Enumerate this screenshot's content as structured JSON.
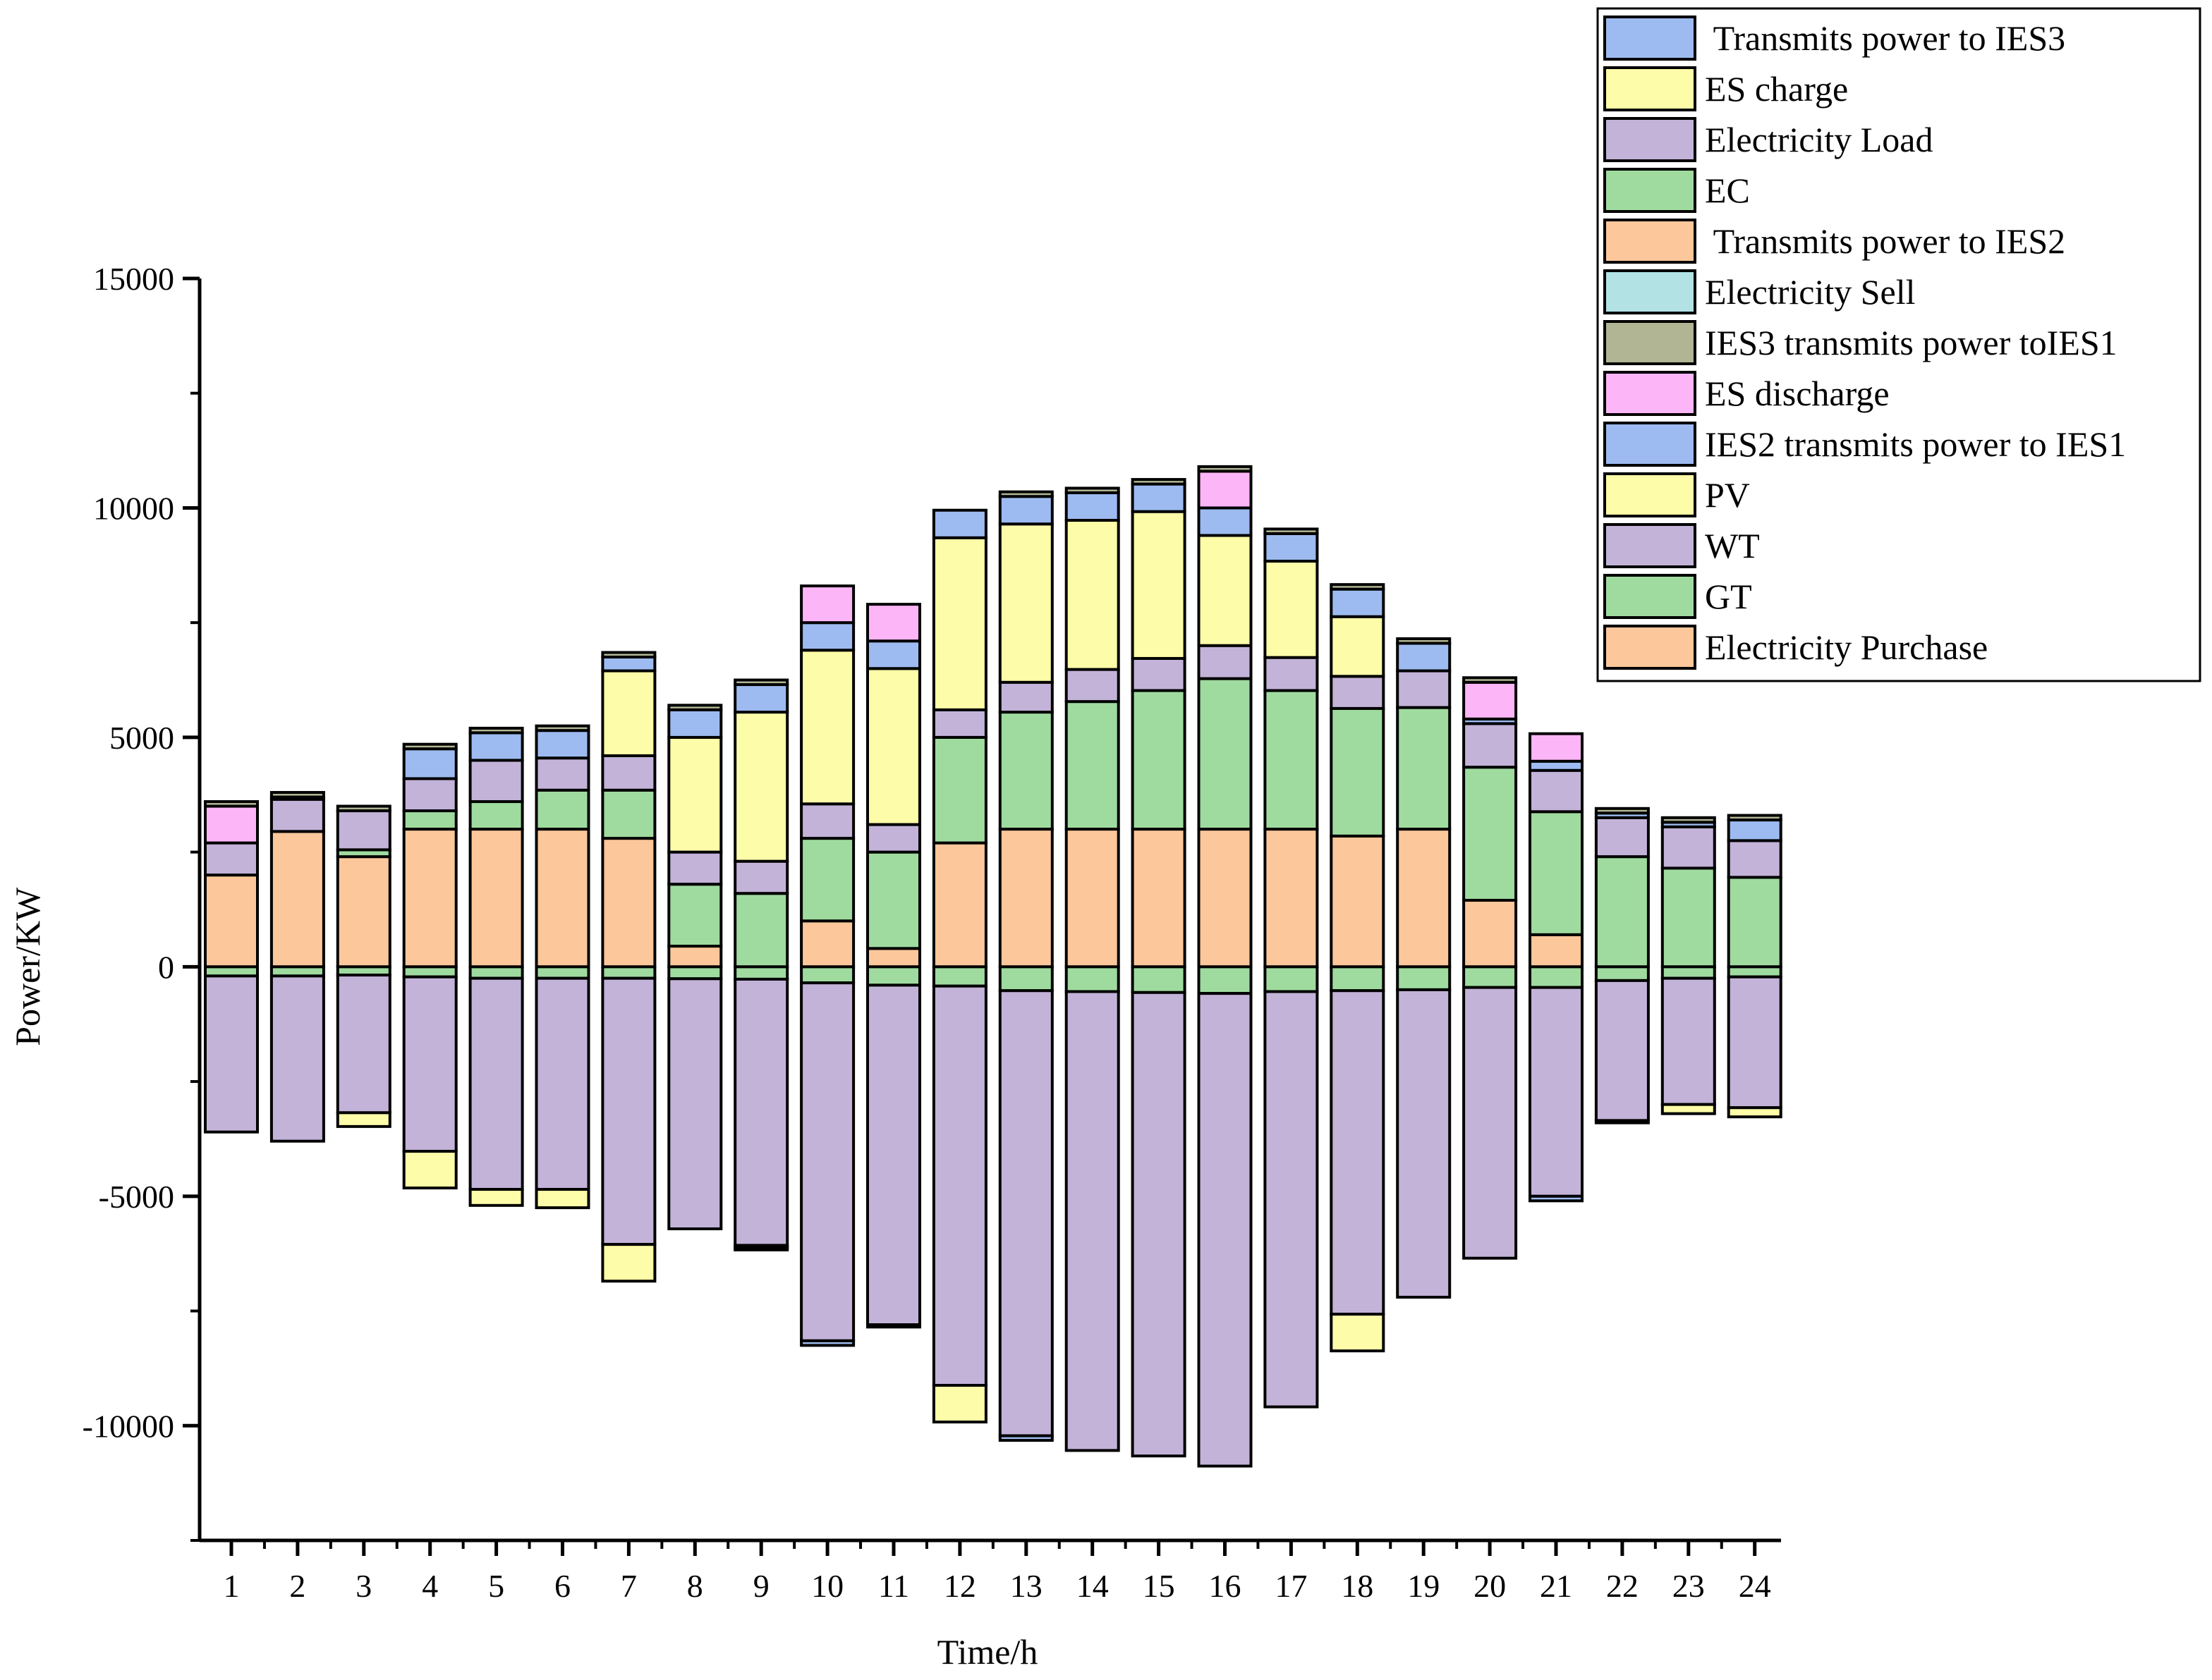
{
  "chart_data": {
    "type": "bar",
    "stacked": true,
    "xlabel": "Time/h",
    "ylabel": "Power/KW",
    "ylim": [
      -12500,
      15000
    ],
    "yticks": [
      -10000,
      -5000,
      0,
      5000,
      10000,
      15000
    ],
    "categories": [
      "1",
      "2",
      "3",
      "4",
      "5",
      "6",
      "7",
      "8",
      "9",
      "10",
      "11",
      "12",
      "13",
      "14",
      "15",
      "16",
      "17",
      "18",
      "19",
      "20",
      "21",
      "22",
      "23",
      "24"
    ],
    "grid": false,
    "legend_position": "top-right",
    "legend": [
      {
        "label": " Transmits power to IES3",
        "color": "#9dbbf0"
      },
      {
        "label": "ES charge",
        "color": "#fdfca8"
      },
      {
        "label": "Electricity Load",
        "color": "#c3b3d8"
      },
      {
        "label": "EC",
        "color": "#9fdb9f"
      },
      {
        "label": " Transmits power to IES2",
        "color": "#fbc79b"
      },
      {
        "label": "Electricity Sell",
        "color": "#b2e2e4"
      },
      {
        "label": "IES3 transmits power toIES1",
        "color": "#b2b594"
      },
      {
        "label": "ES discharge",
        "color": "#fcb5f6"
      },
      {
        "label": "IES2 transmits power to IES1",
        "color": "#9dbbf0"
      },
      {
        "label": "PV",
        "color": "#fdfca8"
      },
      {
        "label": "WT",
        "color": "#c3b3d8"
      },
      {
        "label": "GT",
        "color": "#9fdb9f"
      },
      {
        "label": "Electricity Purchase",
        "color": "#fbc79b"
      }
    ],
    "positive_series": [
      {
        "name": "Electricity Purchase",
        "color": "#fbc79b",
        "values": [
          2000,
          2950,
          2400,
          3000,
          3000,
          3000,
          2800,
          450,
          0,
          1000,
          400,
          2700,
          3000,
          3000,
          3000,
          3000,
          3000,
          2850,
          3000,
          1450,
          700,
          0,
          0,
          0
        ]
      },
      {
        "name": "GT",
        "color": "#9fdb9f",
        "values": [
          0,
          0,
          150,
          400,
          600,
          850,
          1050,
          1350,
          1600,
          1800,
          2100,
          2300,
          2550,
          2780,
          3020,
          3280,
          3020,
          2780,
          2650,
          2900,
          2680,
          2400,
          2150,
          1950
        ]
      },
      {
        "name": "WT",
        "color": "#c3b3d8",
        "values": [
          700,
          700,
          850,
          700,
          900,
          700,
          750,
          700,
          700,
          750,
          600,
          600,
          650,
          700,
          700,
          720,
          720,
          700,
          800,
          950,
          900,
          850,
          900,
          800
        ]
      },
      {
        "name": "PV",
        "color": "#fdfca8",
        "values": [
          0,
          0,
          0,
          0,
          0,
          0,
          1850,
          2500,
          3250,
          3350,
          3400,
          3750,
          3450,
          3250,
          3200,
          2400,
          2100,
          1300,
          0,
          0,
          0,
          0,
          0,
          0
        ]
      },
      {
        "name": "IES2 transmits power to IES1",
        "color": "#9dbbf0",
        "values": [
          0,
          50,
          0,
          650,
          600,
          600,
          300,
          600,
          600,
          600,
          600,
          600,
          600,
          600,
          600,
          600,
          600,
          600,
          600,
          100,
          200,
          100,
          100,
          450
        ]
      },
      {
        "name": "ES discharge",
        "color": "#fcb5f6",
        "values": [
          800,
          0,
          0,
          0,
          0,
          0,
          0,
          0,
          0,
          800,
          800,
          0,
          0,
          0,
          0,
          800,
          0,
          0,
          0,
          800,
          600,
          0,
          0,
          0
        ]
      },
      {
        "name": "IES3 transmits power toIES1",
        "color": "#b2b594",
        "values": [
          100,
          100,
          100,
          100,
          100,
          100,
          100,
          100,
          100,
          0,
          0,
          0,
          100,
          100,
          100,
          100,
          100,
          100,
          100,
          100,
          0,
          100,
          100,
          100
        ]
      },
      {
        "name": "Electricity Sell",
        "color": "#b2e2e4",
        "values": [
          0,
          0,
          0,
          0,
          0,
          0,
          0,
          0,
          0,
          0,
          0,
          0,
          0,
          0,
          0,
          0,
          0,
          0,
          0,
          0,
          0,
          0,
          0,
          0
        ]
      }
    ],
    "negative_series": [
      {
        "name": "EC",
        "color": "#9fdb9f",
        "values": [
          -200,
          -200,
          -180,
          -220,
          -250,
          -250,
          -250,
          -260,
          -270,
          -350,
          -400,
          -420,
          -520,
          -540,
          -560,
          -580,
          -540,
          -520,
          -500,
          -450,
          -450,
          -300,
          -250,
          -220
        ]
      },
      {
        "name": "Electricity Load",
        "color": "#c3b3d8",
        "values": [
          -3400,
          -3600,
          -3000,
          -3800,
          -4600,
          -4600,
          -5800,
          -5450,
          -5800,
          -7800,
          -7400,
          -8700,
          -9700,
          -10000,
          -10100,
          -10300,
          -9050,
          -7050,
          -6700,
          -5900,
          -4550,
          -3050,
          -2750,
          -2850
        ]
      },
      {
        "name": "ES charge",
        "color": "#fdfca8",
        "values": [
          0,
          0,
          -300,
          -800,
          -350,
          -400,
          -800,
          0,
          -50,
          0,
          0,
          -800,
          0,
          0,
          0,
          0,
          0,
          -800,
          0,
          0,
          0,
          0,
          -200,
          -200
        ]
      },
      {
        "name": " Transmits power to IES2",
        "color": "#fbc79b",
        "values": [
          0,
          0,
          0,
          0,
          0,
          0,
          0,
          0,
          0,
          0,
          0,
          0,
          0,
          0,
          0,
          0,
          0,
          0,
          0,
          0,
          0,
          0,
          0,
          0
        ]
      },
      {
        "name": " Transmits power to IES3",
        "color": "#9dbbf0",
        "values": [
          0,
          0,
          0,
          0,
          0,
          0,
          0,
          0,
          -50,
          -100,
          -50,
          0,
          -100,
          0,
          0,
          0,
          0,
          0,
          0,
          0,
          -100,
          -50,
          0,
          0
        ]
      }
    ]
  }
}
